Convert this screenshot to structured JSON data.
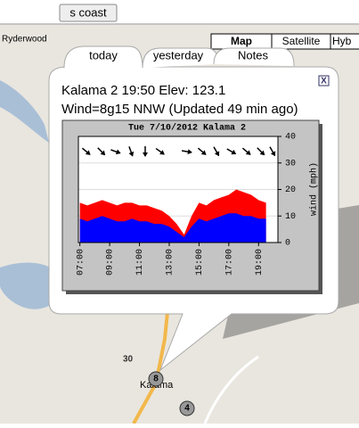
{
  "toolbar": {
    "button": "s coast",
    "map_types": [
      "Map",
      "Satellite",
      "Hyb"
    ]
  },
  "map_labels": {
    "town_north": "Ryderwood",
    "town_south": "Kalama",
    "highway": "30",
    "marker_1": "8",
    "marker_2": "4"
  },
  "popup": {
    "tabs": [
      "today",
      "yesterday",
      "Notes"
    ],
    "close": "X",
    "line1": "Kalama 2 19:50 Elev: 123.1",
    "line2": "Wind=8g15 NNW (Updated 49 min ago)"
  },
  "chart_data": {
    "type": "area",
    "title": "Tue 7/10/2012 Kalama 2",
    "y_label": "wind (mph)",
    "x": [
      7.0,
      7.5,
      8.0,
      8.5,
      9.0,
      9.5,
      10.0,
      10.5,
      11.0,
      11.5,
      12.0,
      12.5,
      13.0,
      13.5,
      14.0,
      14.5,
      15.0,
      15.5,
      16.0,
      16.5,
      17.0,
      17.5,
      18.0,
      18.5,
      19.0,
      19.5
    ],
    "series": [
      {
        "color": "#ff0000",
        "values": [
          15,
          14,
          15,
          16,
          15,
          14,
          15,
          15,
          14,
          14,
          13,
          12,
          10,
          7,
          3,
          10,
          15,
          14,
          16,
          17,
          18,
          20,
          19,
          18,
          16,
          15
        ]
      },
      {
        "color": "#0000ff",
        "values": [
          9,
          8,
          9,
          10,
          9,
          8,
          8,
          9,
          8,
          8,
          7,
          7,
          6,
          4,
          2,
          6,
          9,
          8,
          9,
          10,
          11,
          11,
          10,
          10,
          9,
          9
        ]
      }
    ],
    "xlim": [
      6.9,
      20.3
    ],
    "ylim": [
      0,
      40
    ],
    "xticks": [
      {
        "value": 7,
        "label": "07:00"
      },
      {
        "value": 9,
        "label": "09:00"
      },
      {
        "value": 11,
        "label": "11:00"
      },
      {
        "value": 13,
        "label": "13:00"
      },
      {
        "value": 15,
        "label": "15:00"
      },
      {
        "value": 17,
        "label": "17:00"
      },
      {
        "value": 19,
        "label": "19:00"
      }
    ],
    "yticks": [
      0,
      10,
      20,
      30,
      40
    ],
    "grid": true
  }
}
